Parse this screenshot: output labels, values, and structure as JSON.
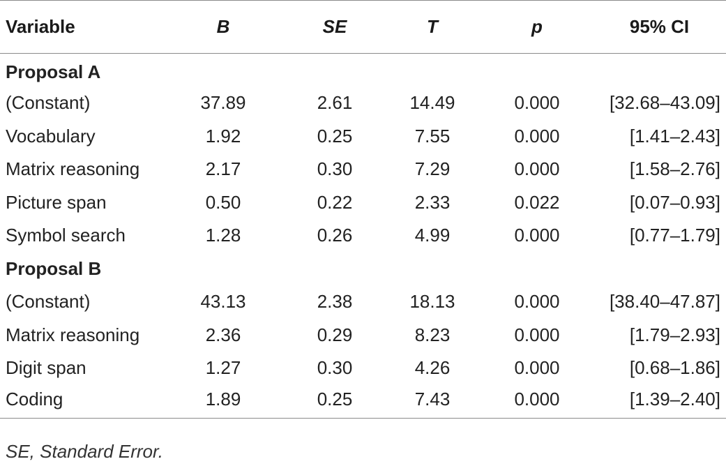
{
  "table": {
    "headers": {
      "variable": "Variable",
      "b": "B",
      "se": "SE",
      "t": "T",
      "p": "p",
      "ci": "95% CI"
    },
    "sections": [
      {
        "title": "Proposal A",
        "rows": [
          {
            "variable": "(Constant)",
            "b": "37.89",
            "se": "2.61",
            "t": "14.49",
            "p": "0.000",
            "ci": "[32.68–43.09]"
          },
          {
            "variable": "Vocabulary",
            "b": "1.92",
            "se": "0.25",
            "t": "7.55",
            "p": "0.000",
            "ci": "[1.41–2.43]"
          },
          {
            "variable": "Matrix reasoning",
            "b": "2.17",
            "se": "0.30",
            "t": "7.29",
            "p": "0.000",
            "ci": "[1.58–2.76]"
          },
          {
            "variable": "Picture span",
            "b": "0.50",
            "se": "0.22",
            "t": "2.33",
            "p": "0.022",
            "ci": "[0.07–0.93]"
          },
          {
            "variable": "Symbol search",
            "b": "1.28",
            "se": "0.26",
            "t": "4.99",
            "p": "0.000",
            "ci": "[0.77–1.79]"
          }
        ]
      },
      {
        "title": "Proposal B",
        "rows": [
          {
            "variable": "(Constant)",
            "b": "43.13",
            "se": "2.38",
            "t": "18.13",
            "p": "0.000",
            "ci": "[38.40–47.87]"
          },
          {
            "variable": "Matrix reasoning",
            "b": "2.36",
            "se": "0.29",
            "t": "8.23",
            "p": "0.000",
            "ci": "[1.79–2.93]"
          },
          {
            "variable": "Digit span",
            "b": "1.27",
            "se": "0.30",
            "t": "4.26",
            "p": "0.000",
            "ci": "[0.68–1.86]"
          },
          {
            "variable": "Coding",
            "b": "1.89",
            "se": "0.25",
            "t": "7.43",
            "p": "0.000",
            "ci": "[1.39–2.40]"
          }
        ]
      }
    ]
  },
  "footnote": "SE, Standard Error."
}
